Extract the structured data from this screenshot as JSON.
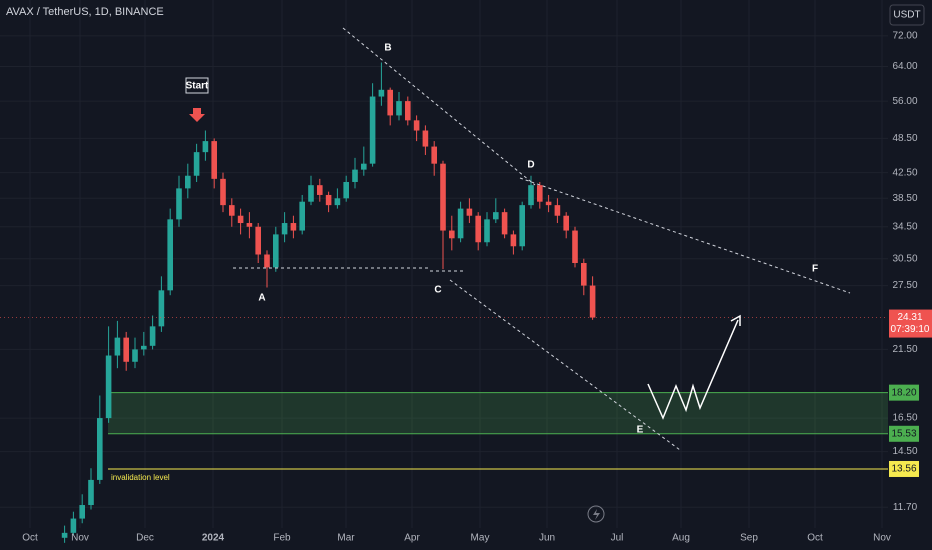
{
  "chart_data": {
    "type": "candlestick",
    "title": "AVAX / TetherUS, 1D, BINANCE",
    "currency": "USDT",
    "log_scale": true,
    "grid": true,
    "ylim": [
      10.8,
      82.7
    ],
    "yticks": [
      {
        "value": 72,
        "label": "72.00"
      },
      {
        "value": 64,
        "label": "64.00"
      },
      {
        "value": 56,
        "label": "56.00"
      },
      {
        "value": 48.5,
        "label": "48.50"
      },
      {
        "value": 42.5,
        "label": "42.50"
      },
      {
        "value": 38.5,
        "label": "38.50"
      },
      {
        "value": 34.5,
        "label": "34.50"
      },
      {
        "value": 30.5,
        "label": "30.50"
      },
      {
        "value": 27.5,
        "label": "27.50"
      },
      {
        "value": 21.5,
        "label": "21.50"
      },
      {
        "value": 16.5,
        "label": "16.50"
      },
      {
        "value": 14.5,
        "label": "14.50"
      },
      {
        "value": 11.7,
        "label": "11.70"
      }
    ],
    "xtick_labels": [
      "Oct",
      "Nov",
      "Dec",
      "2024",
      "Feb",
      "Mar",
      "Apr",
      "May",
      "Jun",
      "Jul",
      "Aug",
      "Sep",
      "Oct",
      "Nov"
    ],
    "up_color": "#26a69a",
    "down_color": "#ef5350",
    "open": [
      10.4,
      10.6,
      11.2,
      11.8,
      13.0,
      16.5,
      21.0,
      22.5,
      20.5,
      21.5,
      21.8,
      23.5,
      27.0,
      35.5,
      40.0,
      42.0,
      46.0,
      48.0,
      41.5,
      37.5,
      36.0,
      35.0,
      34.5,
      31.0,
      29.5,
      33.5,
      35.0,
      34.0,
      38.0,
      40.5,
      39.0,
      37.5,
      38.5,
      41.0,
      43.0,
      44.0,
      57.0,
      58.5,
      53.0,
      56.0,
      52.0,
      50.0,
      47.0,
      44.0,
      34.0,
      33.0,
      37.0,
      36.0,
      32.5,
      35.5,
      36.5,
      33.5,
      32.0,
      37.5,
      40.5,
      38.0,
      37.5,
      36.0,
      34.0,
      30.0,
      27.5
    ],
    "high": [
      10.9,
      11.5,
      12.3,
      13.6,
      18.0,
      23.5,
      24.0,
      23.0,
      22.5,
      23.0,
      24.5,
      28.5,
      37.0,
      42.0,
      44.0,
      47.5,
      50.0,
      48.5,
      42.5,
      38.5,
      37.0,
      36.5,
      35.0,
      31.5,
      34.5,
      36.5,
      36.0,
      39.0,
      42.0,
      41.5,
      39.5,
      40.0,
      42.0,
      45.0,
      47.0,
      60.0,
      65.0,
      59.0,
      58.0,
      57.0,
      53.0,
      51.0,
      48.0,
      44.5,
      36.0,
      38.0,
      38.5,
      36.5,
      36.5,
      38.5,
      37.0,
      34.0,
      38.0,
      42.0,
      41.0,
      39.0,
      38.5,
      36.5,
      34.5,
      30.5,
      28.5
    ],
    "low": [
      10.2,
      10.5,
      11.0,
      11.6,
      12.8,
      16.2,
      20.0,
      19.8,
      20.0,
      21.0,
      21.5,
      23.0,
      26.5,
      34.5,
      38.5,
      41.0,
      44.5,
      40.0,
      36.5,
      34.5,
      33.5,
      33.0,
      30.0,
      27.3,
      29.0,
      32.5,
      33.0,
      33.5,
      37.5,
      38.0,
      36.5,
      37.0,
      38.0,
      40.0,
      42.0,
      43.5,
      55.0,
      51.0,
      52.0,
      51.0,
      48.0,
      45.5,
      42.0,
      29.3,
      31.5,
      32.5,
      35.0,
      31.5,
      32.0,
      35.0,
      33.0,
      31.0,
      31.5,
      37.0,
      37.0,
      36.5,
      35.0,
      33.0,
      29.5,
      26.5,
      24.1
    ],
    "close": [
      10.6,
      11.2,
      11.8,
      13.0,
      16.5,
      21.0,
      22.5,
      20.5,
      21.5,
      21.8,
      23.5,
      27.0,
      35.5,
      40.0,
      42.0,
      46.0,
      48.0,
      41.5,
      37.5,
      36.0,
      35.0,
      34.5,
      31.0,
      29.5,
      33.5,
      35.0,
      34.0,
      38.0,
      40.5,
      39.0,
      37.5,
      38.5,
      41.0,
      43.0,
      44.0,
      57.0,
      58.5,
      53.0,
      56.0,
      52.0,
      50.0,
      47.0,
      44.0,
      34.0,
      33.0,
      37.0,
      36.0,
      32.5,
      35.5,
      36.5,
      33.5,
      32.0,
      37.5,
      40.5,
      38.0,
      37.5,
      36.0,
      34.0,
      30.0,
      27.5,
      24.31
    ],
    "last_price": {
      "value": 24.31,
      "label": "24.31",
      "countdown": "07:39:10"
    },
    "levels": [
      {
        "value": 18.2,
        "label": "18.20",
        "color": "#4caf50"
      },
      {
        "value": 15.53,
        "label": "15.53",
        "color": "#4caf50"
      },
      {
        "value": 13.56,
        "label": "13.56",
        "color": "#f5e94f"
      }
    ],
    "annotations": [
      "Start",
      "A",
      "B",
      "C",
      "D",
      "E",
      "F",
      "invalidation level"
    ]
  }
}
